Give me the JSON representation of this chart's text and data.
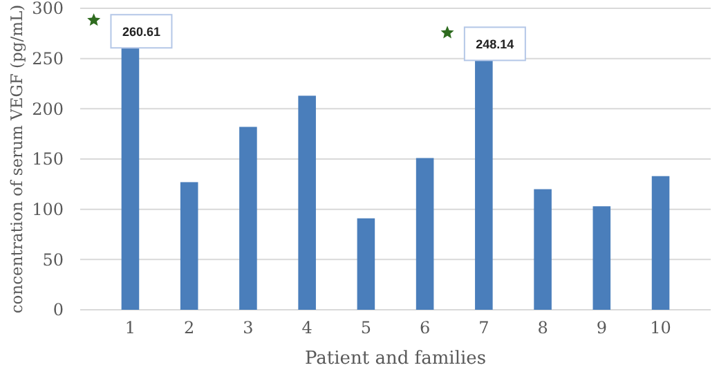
{
  "chart_data": {
    "type": "bar",
    "xlabel": "Patient and families",
    "ylabel": "concentration of serum VEGF (pg/mL)",
    "categories": [
      "1",
      "2",
      "3",
      "4",
      "5",
      "6",
      "7",
      "8",
      "9",
      "10"
    ],
    "values": [
      260.61,
      127,
      182,
      213,
      91,
      151,
      248.14,
      120,
      103,
      133
    ],
    "value_labels": [
      "260.61",
      null,
      null,
      null,
      null,
      null,
      "248.14",
      null,
      null,
      null
    ],
    "color": "#4a7ebb",
    "ylim": [
      0,
      300
    ],
    "yticks": [
      0,
      50,
      100,
      150,
      200,
      250,
      300
    ],
    "grid": "y"
  }
}
